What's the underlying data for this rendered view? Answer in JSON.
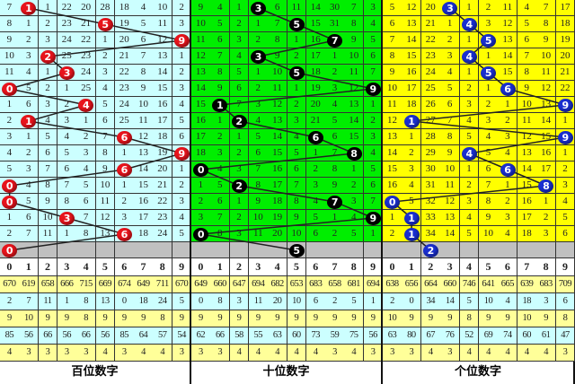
{
  "chart_data": {
    "type": "table",
    "digits": [
      "0",
      "1",
      "2",
      "3",
      "4",
      "5",
      "6",
      "7",
      "8",
      "9"
    ],
    "panels": [
      {
        "title": "百位数字",
        "bg": "#ccffff",
        "ball_color": "#e8141c",
        "rows": [
          [
            7,
            1,
            1,
            22,
            20,
            28,
            18,
            4,
            10,
            2
          ],
          [
            8,
            1,
            2,
            23,
            21,
            5,
            19,
            5,
            11,
            3
          ],
          [
            9,
            2,
            3,
            24,
            22,
            1,
            20,
            6,
            12,
            9
          ],
          [
            10,
            3,
            2,
            25,
            23,
            2,
            21,
            7,
            13,
            1
          ],
          [
            11,
            4,
            1,
            3,
            24,
            3,
            22,
            8,
            14,
            2
          ],
          [
            0,
            5,
            2,
            1,
            25,
            4,
            23,
            9,
            15,
            3
          ],
          [
            1,
            6,
            3,
            2,
            4,
            5,
            24,
            10,
            16,
            4
          ],
          [
            2,
            1,
            4,
            3,
            1,
            6,
            25,
            11,
            17,
            5
          ],
          [
            3,
            1,
            5,
            4,
            2,
            7,
            6,
            12,
            18,
            6
          ],
          [
            4,
            2,
            6,
            5,
            3,
            8,
            1,
            13,
            19,
            9
          ],
          [
            5,
            3,
            7,
            6,
            4,
            9,
            6,
            14,
            20,
            1
          ],
          [
            0,
            4,
            8,
            7,
            5,
            10,
            1,
            15,
            21,
            2
          ],
          [
            0,
            5,
            9,
            8,
            6,
            11,
            2,
            16,
            22,
            3
          ],
          [
            1,
            6,
            10,
            3,
            7,
            12,
            3,
            17,
            23,
            4
          ],
          [
            2,
            7,
            11,
            1,
            8,
            13,
            6,
            18,
            24,
            5
          ]
        ],
        "balls": [
          1,
          5,
          9,
          2,
          3,
          0,
          4,
          1,
          6,
          9,
          6,
          0,
          0,
          3,
          6,
          0
        ],
        "stats": [
          [
            670,
            619,
            658,
            666,
            715,
            669,
            674,
            649,
            711,
            670
          ],
          [
            2,
            7,
            11,
            1,
            8,
            13,
            0,
            18,
            24,
            5
          ],
          [
            9,
            10,
            9,
            9,
            8,
            9,
            9,
            9,
            8,
            9
          ],
          [
            85,
            56,
            66,
            56,
            66,
            56,
            85,
            64,
            57,
            54
          ],
          [
            4,
            3,
            3,
            3,
            3,
            4,
            3,
            4,
            4,
            3
          ]
        ]
      },
      {
        "title": "十位数字",
        "bg": "#00ee00",
        "ball_color": "#000000",
        "rows": [
          [
            9,
            4,
            1,
            3,
            6,
            11,
            14,
            30,
            7,
            3
          ],
          [
            10,
            5,
            2,
            1,
            7,
            5,
            15,
            31,
            8,
            4
          ],
          [
            11,
            6,
            3,
            2,
            8,
            1,
            16,
            7,
            9,
            5
          ],
          [
            12,
            7,
            4,
            3,
            9,
            2,
            17,
            1,
            10,
            6
          ],
          [
            13,
            8,
            5,
            1,
            10,
            5,
            18,
            2,
            11,
            7
          ],
          [
            14,
            9,
            6,
            2,
            11,
            1,
            19,
            3,
            12,
            9
          ],
          [
            15,
            1,
            7,
            3,
            12,
            2,
            20,
            4,
            13,
            1
          ],
          [
            16,
            1,
            2,
            4,
            13,
            3,
            21,
            5,
            14,
            2
          ],
          [
            17,
            2,
            1,
            5,
            14,
            4,
            6,
            6,
            15,
            3
          ],
          [
            18,
            3,
            2,
            6,
            15,
            5,
            1,
            7,
            8,
            4
          ],
          [
            0,
            4,
            3,
            7,
            16,
            6,
            2,
            8,
            1,
            5
          ],
          [
            1,
            5,
            2,
            8,
            17,
            7,
            3,
            9,
            2,
            6
          ],
          [
            2,
            6,
            1,
            9,
            18,
            8,
            4,
            7,
            3,
            7
          ],
          [
            3,
            7,
            2,
            10,
            19,
            9,
            5,
            1,
            4,
            9
          ],
          [
            0,
            8,
            3,
            11,
            20,
            10,
            6,
            2,
            5,
            1
          ]
        ],
        "balls": [
          3,
          5,
          7,
          3,
          5,
          9,
          1,
          2,
          6,
          8,
          0,
          2,
          7,
          9,
          0,
          5
        ],
        "stats": [
          [
            649,
            660,
            647,
            694,
            682,
            653,
            683,
            658,
            681,
            694
          ],
          [
            0,
            8,
            3,
            11,
            20,
            10,
            6,
            2,
            5,
            1
          ],
          [
            9,
            9,
            9,
            9,
            9,
            9,
            9,
            9,
            9,
            9
          ],
          [
            62,
            66,
            58,
            55,
            63,
            60,
            73,
            59,
            75,
            56
          ],
          [
            3,
            3,
            4,
            4,
            4,
            4,
            4,
            3,
            4,
            3
          ]
        ]
      },
      {
        "title": "个位数字",
        "bg": "#ffff00",
        "ball_color": "#1a2fd0",
        "rows": [
          [
            5,
            12,
            20,
            3,
            1,
            2,
            11,
            4,
            7,
            17
          ],
          [
            6,
            13,
            21,
            1,
            4,
            3,
            12,
            5,
            8,
            18
          ],
          [
            7,
            14,
            22,
            2,
            1,
            5,
            13,
            6,
            9,
            19
          ],
          [
            8,
            15,
            23,
            3,
            4,
            1,
            14,
            7,
            10,
            20
          ],
          [
            9,
            16,
            24,
            4,
            1,
            5,
            15,
            8,
            11,
            21
          ],
          [
            10,
            17,
            25,
            5,
            2,
            1,
            6,
            9,
            12,
            22
          ],
          [
            11,
            18,
            26,
            6,
            3,
            2,
            1,
            10,
            13,
            9
          ],
          [
            12,
            1,
            27,
            7,
            4,
            3,
            2,
            11,
            14,
            1
          ],
          [
            13,
            1,
            28,
            8,
            5,
            4,
            3,
            12,
            15,
            9
          ],
          [
            14,
            2,
            29,
            9,
            4,
            5,
            4,
            13,
            16,
            1
          ],
          [
            15,
            3,
            30,
            10,
            1,
            6,
            6,
            14,
            17,
            2
          ],
          [
            16,
            4,
            31,
            11,
            2,
            7,
            1,
            15,
            8,
            3
          ],
          [
            0,
            5,
            32,
            12,
            3,
            8,
            2,
            16,
            1,
            4
          ],
          [
            1,
            1,
            33,
            13,
            4,
            9,
            3,
            17,
            2,
            5
          ],
          [
            2,
            1,
            34,
            14,
            5,
            10,
            4,
            18,
            3,
            6
          ]
        ],
        "balls": [
          3,
          4,
          5,
          4,
          5,
          6,
          9,
          1,
          9,
          4,
          6,
          8,
          0,
          1,
          1,
          2
        ],
        "stats": [
          [
            638,
            656,
            664,
            660,
            746,
            641,
            665,
            639,
            683,
            709
          ],
          [
            2,
            0,
            34,
            14,
            5,
            10,
            4,
            18,
            3,
            6
          ],
          [
            10,
            9,
            9,
            9,
            8,
            9,
            9,
            10,
            9,
            8
          ],
          [
            63,
            80,
            67,
            76,
            52,
            69,
            74,
            60,
            61,
            47
          ],
          [
            3,
            3,
            4,
            3,
            4,
            4,
            4,
            4,
            4,
            3
          ]
        ]
      }
    ],
    "colors": {
      "pending_row": "#c0c0c0",
      "stat_odd": "#ffff99",
      "stat_even": "#ccffff"
    }
  }
}
